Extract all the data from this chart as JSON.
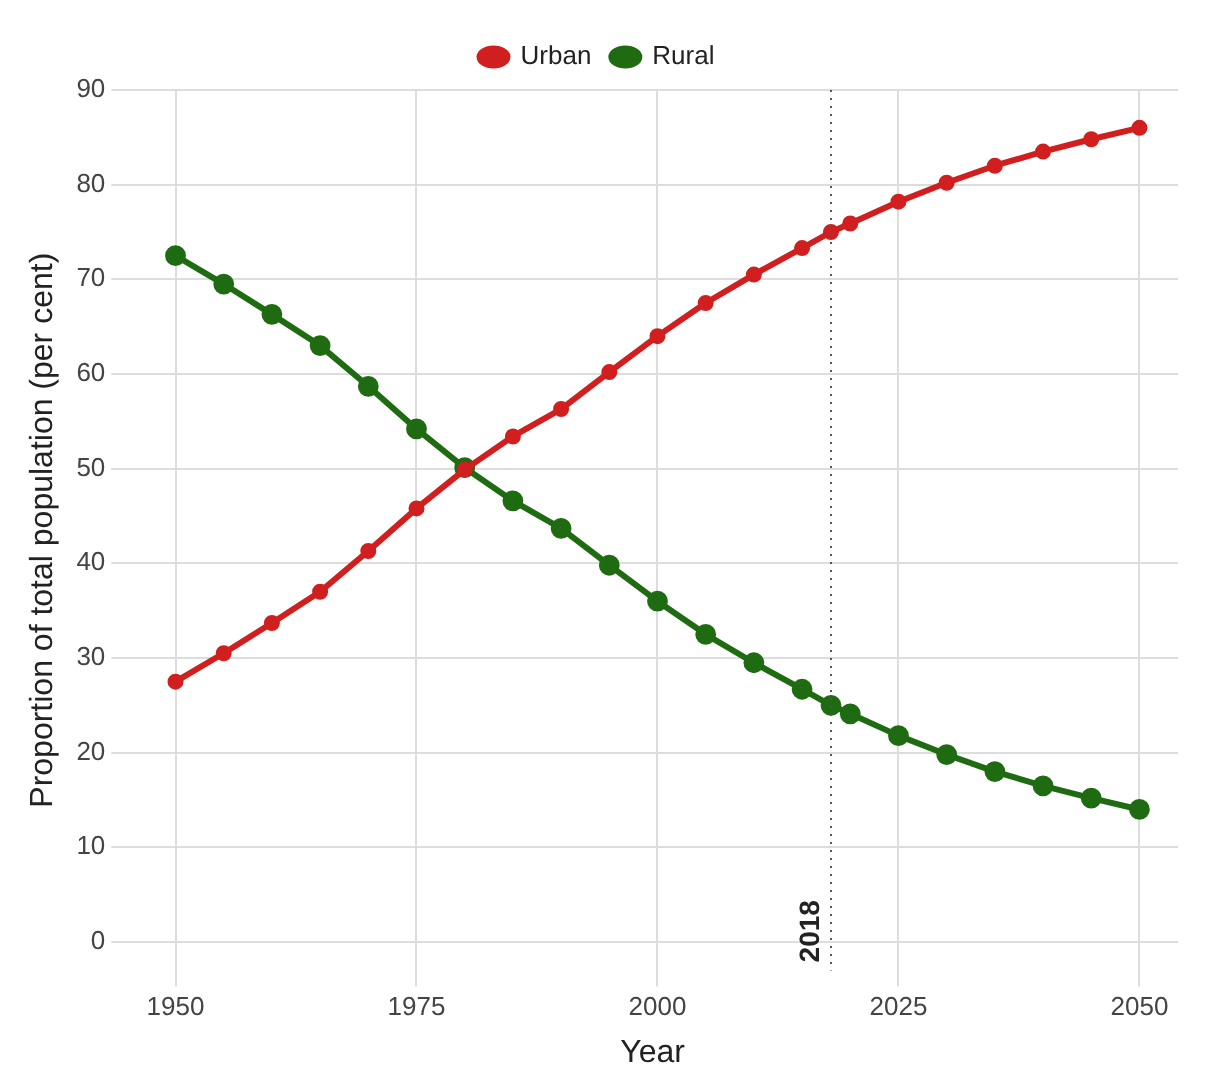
{
  "chart_data": {
    "type": "line",
    "xlabel": "Year",
    "ylabel": "Proportion of total population (per cent)",
    "x": [
      1950,
      1955,
      1960,
      1965,
      1970,
      1975,
      1980,
      1985,
      1990,
      1995,
      2000,
      2005,
      2010,
      2015,
      2018,
      2020,
      2025,
      2030,
      2035,
      2040,
      2045,
      2050
    ],
    "series": [
      {
        "name": "Urban",
        "color": "#d11f1f",
        "values": [
          27.5,
          30.5,
          33.7,
          37,
          41.3,
          45.8,
          49.9,
          53.4,
          56.3,
          60.2,
          64,
          67.5,
          70.5,
          73.3,
          75,
          75.9,
          78.2,
          80.2,
          82,
          83.5,
          84.8,
          86
        ]
      },
      {
        "name": "Rural",
        "color": "#1e6b12",
        "values": [
          72.5,
          69.5,
          66.3,
          63,
          58.7,
          54.2,
          50.1,
          46.6,
          43.7,
          39.8,
          36,
          32.5,
          29.5,
          26.7,
          25,
          24.1,
          21.8,
          19.8,
          18,
          16.5,
          15.2,
          14
        ]
      }
    ],
    "xlim": [
      1945,
      2054
    ],
    "xticks": [
      1950,
      1975,
      2000,
      2025,
      2050
    ],
    "ylim": [
      -3,
      90
    ],
    "yticks": [
      0,
      10,
      20,
      30,
      40,
      50,
      60,
      70,
      80,
      90
    ],
    "ref_lines": [
      {
        "axis": "x",
        "value": 2018,
        "label": "2018",
        "line_style": "dotted",
        "color": "#555555"
      }
    ],
    "grid": true,
    "legend": "top",
    "marker": "circle",
    "line_style": "solid"
  }
}
